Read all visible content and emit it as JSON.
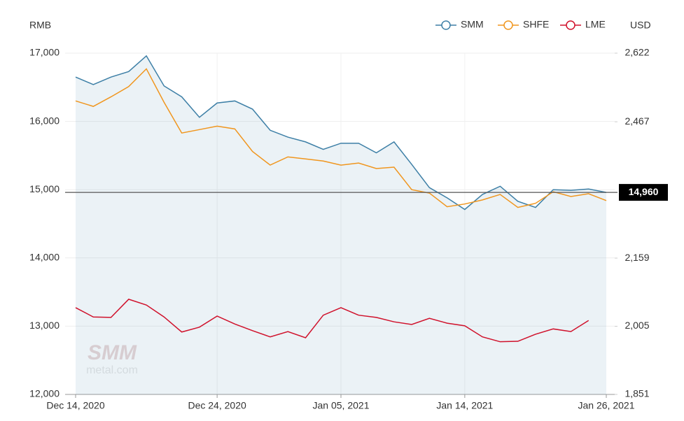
{
  "chart_data": {
    "type": "line",
    "y_axis_label": "RMB",
    "y2_axis_label": "USD",
    "categories": [
      "Dec 14, 2020",
      null,
      null,
      null,
      null,
      null,
      null,
      null,
      "Dec 24, 2020",
      null,
      null,
      null,
      null,
      null,
      null,
      "Jan 05, 2021",
      null,
      null,
      null,
      null,
      null,
      null,
      "Jan 14, 2021",
      null,
      null,
      null,
      null,
      null,
      null,
      null,
      "Jan 26, 2021"
    ],
    "series": [
      {
        "name": "SMM",
        "color": "#3d7fa6",
        "area": true,
        "values": [
          16650,
          16540,
          16650,
          16730,
          16960,
          16520,
          16360,
          16060,
          16270,
          16300,
          16180,
          15870,
          15770,
          15700,
          15590,
          15680,
          15680,
          15540,
          15700,
          15370,
          15030,
          14880,
          14710,
          14930,
          15050,
          14830,
          14740,
          15000,
          14990,
          15010,
          14960
        ]
      },
      {
        "name": "SHFE",
        "color": "#f0961e",
        "values": [
          16300,
          16220,
          16360,
          16510,
          16770,
          16280,
          15830,
          15880,
          15930,
          15890,
          15560,
          15360,
          15480,
          15450,
          15420,
          15360,
          15390,
          15310,
          15330,
          15000,
          14950,
          14750,
          14790,
          14850,
          14930,
          14740,
          14800,
          14970,
          14900,
          14940,
          14840
        ]
      },
      {
        "name": "LME",
        "color": "#d0112b",
        "axis": "y2",
        "values": [
          2047,
          2026,
          2025,
          2066,
          2053,
          2026,
          1992,
          2003,
          2028,
          2010,
          1995,
          1981,
          1993,
          1979,
          2030,
          2047,
          2030,
          2025,
          2015,
          2009,
          2023,
          2012,
          2006,
          1981,
          1970,
          1971,
          1987,
          1999,
          1993,
          2018,
          null
        ]
      }
    ],
    "ylim": [
      12000,
      17000
    ],
    "yticks": [
      {
        "value": 12000,
        "label": "12,000"
      },
      {
        "value": 13000,
        "label": "13,000"
      },
      {
        "value": 14000,
        "label": "14,000"
      },
      {
        "value": 15000,
        "label": "15,000"
      },
      {
        "value": 16000,
        "label": "16,000"
      },
      {
        "value": 17000,
        "label": "17,000"
      }
    ],
    "y2lim": [
      1851,
      2622
    ],
    "y2ticks": [
      {
        "value": 1851,
        "label": "1,851"
      },
      {
        "value": 2005,
        "label": "2,005"
      },
      {
        "value": 2159,
        "label": "2,159"
      },
      {
        "value": 2467,
        "label": "2,467"
      },
      {
        "value": 2622,
        "label": "2,622"
      }
    ],
    "reference_line": {
      "value": 14960,
      "label": "14,960"
    },
    "watermark": [
      "SMM",
      "metal.com"
    ],
    "grid": true,
    "legend": "top-right"
  }
}
